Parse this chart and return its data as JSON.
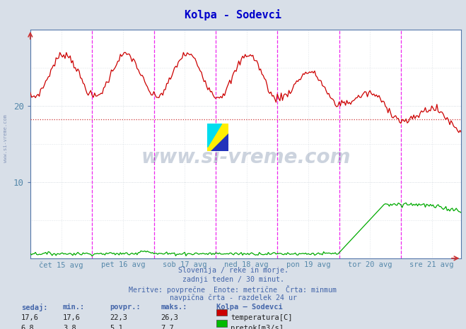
{
  "title": "Kolpa - Sodevci",
  "title_color": "#0000cc",
  "bg_color": "#d8dfe8",
  "plot_bg_color": "#ffffff",
  "grid_color": "#c8d0d8",
  "xlabel_ticks": [
    "čet 15 avg",
    "pet 16 avg",
    "sob 17 avg",
    "ned 18 avg",
    "pon 19 avg",
    "tor 20 avg",
    "sre 21 avg"
  ],
  "ylim": [
    0,
    30
  ],
  "ytick_vals": [
    10,
    20
  ],
  "ytick_labels": [
    "10",
    "20"
  ],
  "ylabel_color": "#5588aa",
  "avg_temp_line": 18.2,
  "avg_temp_color": "#cc3333",
  "subtitle_lines": [
    "Slovenija / reke in morje.",
    "zadnji teden / 30 minut.",
    "Meritve: povprečne  Enote: metrične  Črta: minmum",
    "navpična črta - razdelek 24 ur"
  ],
  "subtitle_color": "#4466aa",
  "table_header_labels": [
    "sedaj:",
    "min.:",
    "povpr.:",
    "maks.:"
  ],
  "table_col_sedaj": [
    "17,6",
    "6,8"
  ],
  "table_col_min": [
    "17,6",
    "3,8"
  ],
  "table_col_povpr": [
    "22,3",
    "5,1"
  ],
  "table_col_maks": [
    "26,3",
    "7,7"
  ],
  "legend_title": "Kolpa – Sodevci",
  "legend_entries": [
    "temperatura[C]",
    "pretok[m3/s]"
  ],
  "legend_colors": [
    "#cc0000",
    "#00bb00"
  ],
  "temp_color": "#cc0000",
  "flow_color": "#00aa00",
  "vline_color": "#ee00ee",
  "axis_color": "#5577aa",
  "n_points": 336
}
